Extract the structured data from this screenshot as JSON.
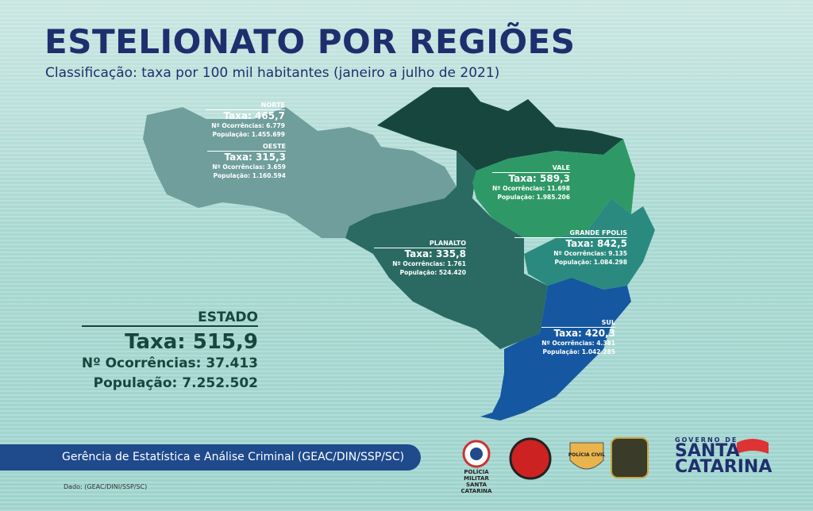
{
  "header": {
    "title": "ESTELIONATO POR REGIÕES",
    "subtitle": "Classificação: taxa por 100 mil habitantes (janeiro a julho de 2021)"
  },
  "regions": [
    {
      "name": "NORTE",
      "rate": "Taxa: 465,7",
      "occurrences": "Nº Ocorrências: 6.779",
      "population": "População: 1.455.699"
    },
    {
      "name": "OESTE",
      "rate": "Taxa: 315,3",
      "occurrences": "Nº Ocorrências: 3.659",
      "population": "População: 1.160.594"
    },
    {
      "name": "VALE",
      "rate": "Taxa: 589,3",
      "occurrences": "Nº Ocorrências: 11.698",
      "population": "População: 1.985.206"
    },
    {
      "name": "PLANALTO",
      "rate": "Taxa: 335,8",
      "occurrences": "Nº Ocorrências: 1.761",
      "population": "População: 524.420"
    },
    {
      "name": "GRANDE FPOLIS",
      "rate": "Taxa: 842,5",
      "occurrences": "Nº Ocorrências: 9.135",
      "population": "População: 1.084.298"
    },
    {
      "name": "SUL",
      "rate": "Taxa: 420,3",
      "occurrences": "Nº Ocorrências: 4.381",
      "population": "População: 1.042.285"
    }
  ],
  "state": {
    "name": "ESTADO",
    "rate": "Taxa: 515,9",
    "occurrences": "Nº Ocorrências: 37.413",
    "population": "População: 7.252.502"
  },
  "footer": {
    "agency": "Gerência de Estatística e Análise Criminal (GEAC/DIN/SSP/SC)",
    "source": "Dado: (GEAC/DINI/SSP/SC)"
  },
  "logos": {
    "pm_line1": "POLÍCIA MILITAR",
    "pm_line2": "SANTA CATARINA",
    "civil": "POLÍCIA CIVIL",
    "gov_small": "GOVERNO DE",
    "gov_line1": "SANTA",
    "gov_line2": "CATARINA"
  }
}
